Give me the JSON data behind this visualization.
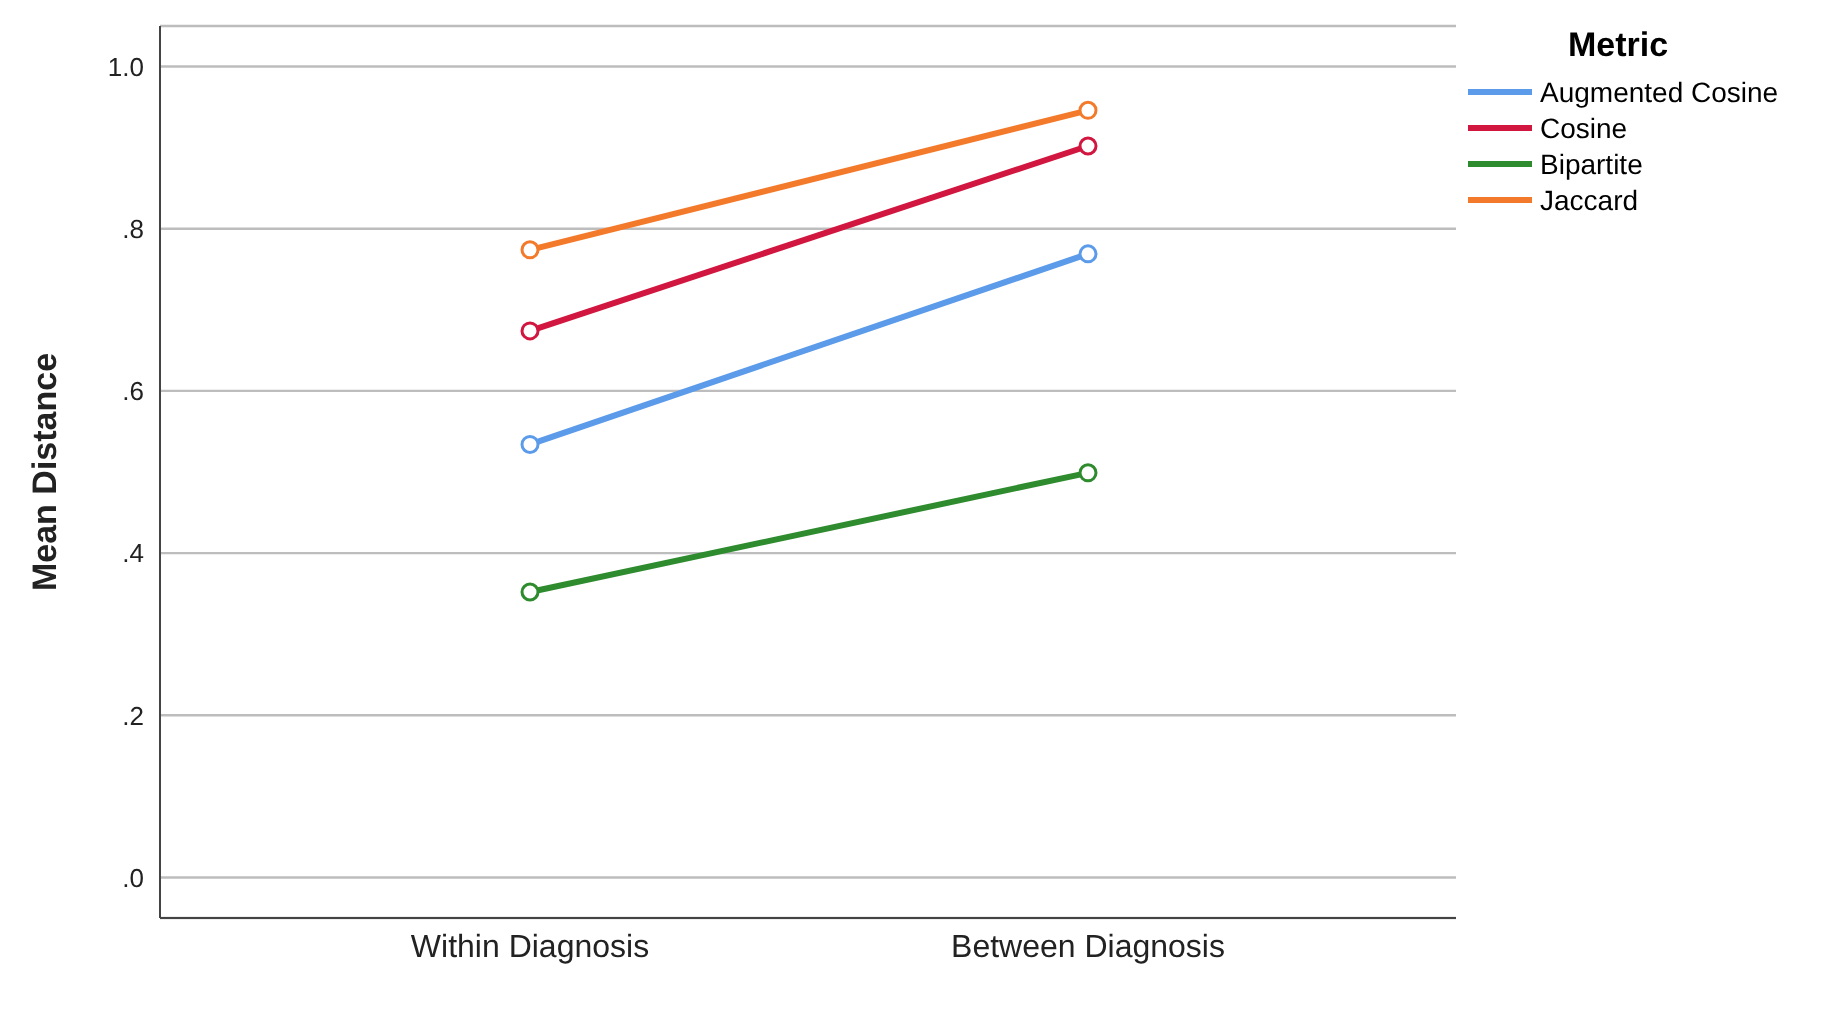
{
  "chart_data": {
    "type": "line",
    "ylabel": "Mean Distance",
    "legend_title": "Metric",
    "categories": [
      "Within Diagnosis",
      "Between Diagnosis"
    ],
    "series": [
      {
        "name": "Augmented Cosine",
        "color": "#5b9bea",
        "values": [
          0.534,
          0.769
        ]
      },
      {
        "name": "Cosine",
        "color": "#d1163f",
        "values": [
          0.674,
          0.902
        ]
      },
      {
        "name": "Bipartite",
        "color": "#2e8b2e",
        "values": [
          0.352,
          0.499
        ]
      },
      {
        "name": "Jaccard",
        "color": "#f47a2b",
        "values": [
          0.774,
          0.946
        ]
      }
    ],
    "ylim": [
      -0.05,
      1.05
    ],
    "yticks": [
      {
        "value": 0,
        "label": ".0"
      },
      {
        "value": 0.2,
        "label": ".2"
      },
      {
        "value": 0.4,
        "label": ".4"
      },
      {
        "value": 0.6,
        "label": ".6"
      },
      {
        "value": 0.8,
        "label": ".8"
      },
      {
        "value": 1,
        "label": "1.0"
      }
    ],
    "grid": "y",
    "legend": "top right",
    "marker": "circle",
    "line_style": "solid"
  }
}
